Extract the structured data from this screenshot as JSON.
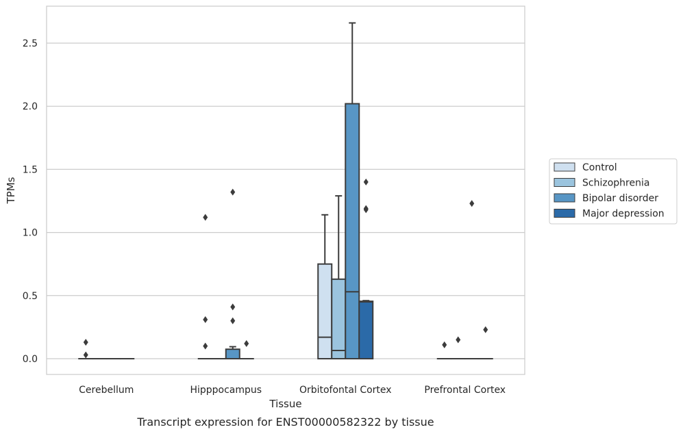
{
  "caption": "Transcript expression for ENST00000582322 by tissue",
  "chart_data": {
    "type": "box",
    "xlabel": "Tissue",
    "ylabel": "TPMs",
    "ylim": [
      -0.13,
      2.8
    ],
    "yticks": [
      0.0,
      0.5,
      1.0,
      1.5,
      2.0,
      2.5
    ],
    "ytick_labels": [
      "0.0",
      "0.5",
      "1.0",
      "1.5",
      "2.0",
      "2.5"
    ],
    "grid": "horizontal",
    "legend_position": "right",
    "categories": [
      "Cerebellum",
      "Hipppocampus",
      "Orbitofontal Cortex",
      "Prefrontal Cortex"
    ],
    "series": [
      {
        "name": "Control",
        "color": "#cfe0f0",
        "boxes": [
          {
            "q1": 0,
            "median": 0,
            "q3": 0,
            "whisker_low": 0,
            "whisker_high": 0,
            "outliers": [
              0.13,
              0.03
            ]
          },
          {
            "q1": 0,
            "median": 0,
            "q3": 0,
            "whisker_low": 0,
            "whisker_high": 0,
            "outliers": [
              1.12,
              0.31,
              0.1
            ]
          },
          {
            "q1": 0,
            "median": 0.17,
            "q3": 0.75,
            "whisker_low": 0,
            "whisker_high": 1.14,
            "outliers": []
          },
          {
            "q1": 0,
            "median": 0,
            "q3": 0,
            "whisker_low": 0,
            "whisker_high": 0,
            "outliers": [
              0.11
            ]
          }
        ]
      },
      {
        "name": "Schizophrenia",
        "color": "#9bc4de",
        "boxes": [
          {
            "q1": 0,
            "median": 0,
            "q3": 0,
            "whisker_low": 0,
            "whisker_high": 0,
            "outliers": []
          },
          {
            "q1": 0,
            "median": 0,
            "q3": 0,
            "whisker_low": 0,
            "whisker_high": 0,
            "outliers": []
          },
          {
            "q1": 0,
            "median": 0.065,
            "q3": 0.63,
            "whisker_low": 0,
            "whisker_high": 1.29,
            "outliers": []
          },
          {
            "q1": 0,
            "median": 0,
            "q3": 0,
            "whisker_low": 0,
            "whisker_high": 0,
            "outliers": [
              0.15
            ]
          }
        ]
      },
      {
        "name": "Bipolar disorder",
        "color": "#5896c5",
        "boxes": [
          {
            "q1": 0,
            "median": 0,
            "q3": 0,
            "whisker_low": 0,
            "whisker_high": 0,
            "outliers": []
          },
          {
            "q1": 0,
            "median": 0,
            "q3": 0.075,
            "whisker_low": 0,
            "whisker_high": 0.095,
            "outliers": [
              1.32,
              0.41,
              0.3
            ]
          },
          {
            "q1": 0,
            "median": 0.53,
            "q3": 2.02,
            "whisker_low": 0,
            "whisker_high": 2.66,
            "outliers": []
          },
          {
            "q1": 0,
            "median": 0,
            "q3": 0,
            "whisker_low": 0,
            "whisker_high": 0,
            "outliers": [
              1.23
            ]
          }
        ]
      },
      {
        "name": "Major depression",
        "color": "#2b6aa8",
        "boxes": [
          {
            "q1": 0,
            "median": 0,
            "q3": 0,
            "whisker_low": 0,
            "whisker_high": 0,
            "outliers": []
          },
          {
            "q1": 0,
            "median": 0,
            "q3": 0,
            "whisker_low": 0,
            "whisker_high": 0,
            "outliers": [
              0.12
            ]
          },
          {
            "q1": 0,
            "median": 0.45,
            "q3": 0.455,
            "whisker_low": 0,
            "whisker_high": 0.46,
            "outliers": [
              1.4,
              1.19,
              1.18
            ]
          },
          {
            "q1": 0,
            "median": 0,
            "q3": 0,
            "whisker_low": 0,
            "whisker_high": 0,
            "outliers": [
              0.23
            ]
          }
        ]
      }
    ]
  }
}
